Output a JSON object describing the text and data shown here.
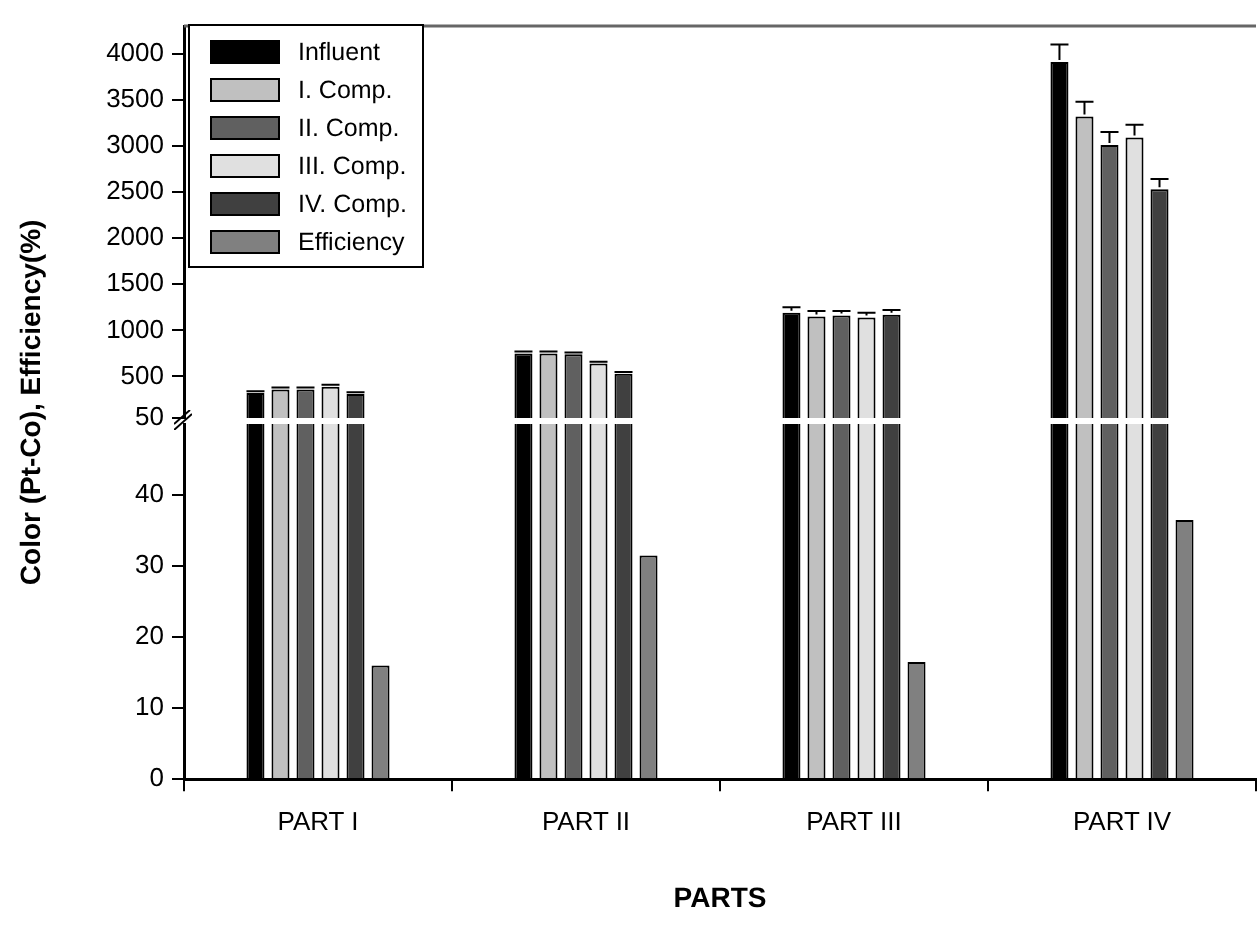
{
  "chart_data": [
    {
      "type": "bar",
      "categories": [
        null,
        null,
        null,
        null
      ],
      "series": [
        {
          "name": "Influent",
          "color": "#000000",
          "values": [
            320,
            750,
            1190,
            3910
          ],
          "errors": [
            20,
            20,
            60,
            190
          ]
        },
        {
          "name": "I. Comp.",
          "color": "#c0c0c0",
          "values": [
            360,
            750,
            1150,
            3320
          ],
          "errors": [
            20,
            20,
            60,
            160
          ]
        },
        {
          "name": "II. Comp.",
          "color": "#606060",
          "values": [
            360,
            740,
            1160,
            3010
          ],
          "errors": [
            20,
            20,
            50,
            140
          ]
        },
        {
          "name": "III. Comp.",
          "color": "#e0e0e0",
          "values": [
            390,
            640,
            1140,
            3090
          ],
          "errors": [
            20,
            20,
            50,
            140
          ]
        },
        {
          "name": "IV. Comp.",
          "color": "#404040",
          "values": [
            310,
            530,
            1170,
            2530
          ],
          "errors": [
            20,
            20,
            50,
            110
          ]
        },
        {
          "name": "Efficiency",
          "color": "#808080",
          "values": [
            null,
            null,
            null,
            null
          ]
        }
      ],
      "ylim": [
        50,
        4300
      ],
      "yticks": [
        50,
        500,
        1000,
        1500,
        2000,
        2500,
        3000,
        3500,
        4000
      ],
      "tick_labels": "y",
      "grid": false,
      "legend": "top left"
    },
    {
      "type": "bar",
      "xlabel": "PARTS",
      "ylabel": "Color (Pt-Co), Efficiency(%)",
      "categories": [
        "PART I",
        "PART II",
        "PART III",
        "PART IV"
      ],
      "series": [
        {
          "color": "#000000",
          "values": [
            null,
            null,
            null,
            null
          ]
        },
        {
          "color": "#c0c0c0",
          "values": [
            null,
            null,
            null,
            null
          ]
        },
        {
          "color": "#606060",
          "values": [
            null,
            null,
            null,
            null
          ]
        },
        {
          "color": "#e0e0e0",
          "values": [
            null,
            null,
            null,
            null
          ]
        },
        {
          "color": "#404040",
          "values": [
            null,
            null,
            null,
            null
          ]
        },
        {
          "color": "#808080",
          "values": [
            16,
            31.5,
            16.5,
            36.5
          ]
        }
      ],
      "ylim": [
        0,
        50
      ],
      "yticks": [
        0,
        10,
        20,
        30,
        40
      ],
      "grid": false
    }
  ]
}
